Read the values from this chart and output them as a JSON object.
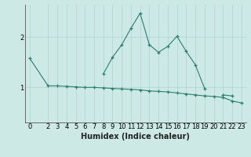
{
  "xlabel": "Humidex (Indice chaleur)",
  "x_values": [
    0,
    2,
    3,
    4,
    5,
    6,
    7,
    8,
    9,
    10,
    11,
    12,
    13,
    14,
    15,
    16,
    17,
    18,
    19,
    20,
    21,
    22,
    23
  ],
  "line1_y": [
    1.58,
    1.03,
    1.03,
    1.02,
    1.01,
    1.0,
    1.0,
    0.99,
    0.98,
    0.97,
    0.96,
    0.95,
    0.93,
    0.92,
    0.91,
    0.89,
    0.87,
    0.85,
    0.83,
    0.82,
    0.8,
    0.73,
    0.69
  ],
  "line2_y": [
    null,
    null,
    null,
    null,
    null,
    null,
    null,
    1.27,
    1.6,
    1.85,
    2.18,
    2.48,
    1.85,
    1.7,
    1.82,
    2.02,
    1.72,
    1.45,
    0.98,
    null,
    0.85,
    0.83,
    null
  ],
  "line_color": "#2d7d6e",
  "bg_color": "#cce9e6",
  "grid_color": "#aed4d0",
  "ylim": [
    0.3,
    2.65
  ],
  "yticks": [
    1,
    2
  ],
  "axis_fontsize": 7,
  "tick_fontsize": 6
}
